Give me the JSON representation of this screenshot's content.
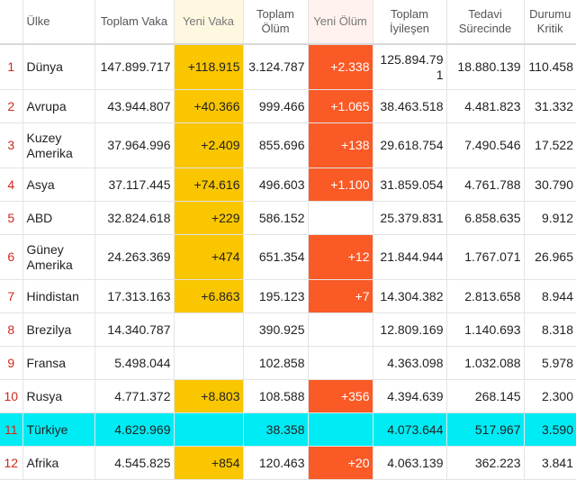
{
  "colors": {
    "new_case_highlight": "#f9c600",
    "new_death_highlight": "#fa5a26",
    "turkey_row_highlight": "#00ecf4",
    "rank_text": "#d0281c"
  },
  "headers": {
    "country": "Ülke",
    "total_cases": "Toplam Vaka",
    "new_cases": "Yeni Vaka",
    "total_deaths": "Toplam Ölüm",
    "new_deaths": "Yeni Ölüm",
    "total_recovered": "Toplam İyileşen",
    "active": "Tedavi Sürecinde",
    "critical": "Durumu Kritik"
  },
  "rows": [
    {
      "rank": "1",
      "country": "Dünya",
      "total_cases": "147.899.717",
      "new_cases": "+118.915",
      "total_deaths": "3.124.787",
      "new_deaths": "+2.338",
      "total_recovered": "125.894.791",
      "active": "18.880.139",
      "critical": "110.458"
    },
    {
      "rank": "2",
      "country": "Avrupa",
      "total_cases": "43.944.807",
      "new_cases": "+40.366",
      "total_deaths": "999.466",
      "new_deaths": "+1.065",
      "total_recovered": "38.463.518",
      "active": "4.481.823",
      "critical": "31.332"
    },
    {
      "rank": "3",
      "country": "Kuzey Amerika",
      "total_cases": "37.964.996",
      "new_cases": "+2.409",
      "total_deaths": "855.696",
      "new_deaths": "+138",
      "total_recovered": "29.618.754",
      "active": "7.490.546",
      "critical": "17.522"
    },
    {
      "rank": "4",
      "country": "Asya",
      "total_cases": "37.117.445",
      "new_cases": "+74.616",
      "total_deaths": "496.603",
      "new_deaths": "+1.100",
      "total_recovered": "31.859.054",
      "active": "4.761.788",
      "critical": "30.790"
    },
    {
      "rank": "5",
      "country": "ABD",
      "total_cases": "32.824.618",
      "new_cases": "+229",
      "total_deaths": "586.152",
      "new_deaths": "",
      "total_recovered": "25.379.831",
      "active": "6.858.635",
      "critical": "9.912"
    },
    {
      "rank": "6",
      "country": "Güney Amerika",
      "total_cases": "24.263.369",
      "new_cases": "+474",
      "total_deaths": "651.354",
      "new_deaths": "+12",
      "total_recovered": "21.844.944",
      "active": "1.767.071",
      "critical": "26.965"
    },
    {
      "rank": "7",
      "country": "Hindistan",
      "total_cases": "17.313.163",
      "new_cases": "+6.863",
      "total_deaths": "195.123",
      "new_deaths": "+7",
      "total_recovered": "14.304.382",
      "active": "2.813.658",
      "critical": "8.944"
    },
    {
      "rank": "8",
      "country": "Brezilya",
      "total_cases": "14.340.787",
      "new_cases": "",
      "total_deaths": "390.925",
      "new_deaths": "",
      "total_recovered": "12.809.169",
      "active": "1.140.693",
      "critical": "8.318"
    },
    {
      "rank": "9",
      "country": "Fransa",
      "total_cases": "5.498.044",
      "new_cases": "",
      "total_deaths": "102.858",
      "new_deaths": "",
      "total_recovered": "4.363.098",
      "active": "1.032.088",
      "critical": "5.978"
    },
    {
      "rank": "10",
      "country": "Rusya",
      "total_cases": "4.771.372",
      "new_cases": "+8.803",
      "total_deaths": "108.588",
      "new_deaths": "+356",
      "total_recovered": "4.394.639",
      "active": "268.145",
      "critical": "2.300"
    },
    {
      "rank": "11",
      "country": "Türkiye",
      "total_cases": "4.629.969",
      "new_cases": "",
      "total_deaths": "38.358",
      "new_deaths": "",
      "total_recovered": "4.073.644",
      "active": "517.967",
      "critical": "3.590"
    },
    {
      "rank": "12",
      "country": "Afrika",
      "total_cases": "4.545.825",
      "new_cases": "+854",
      "total_deaths": "120.463",
      "new_deaths": "+20",
      "total_recovered": "4.063.139",
      "active": "362.223",
      "critical": "3.841"
    }
  ]
}
